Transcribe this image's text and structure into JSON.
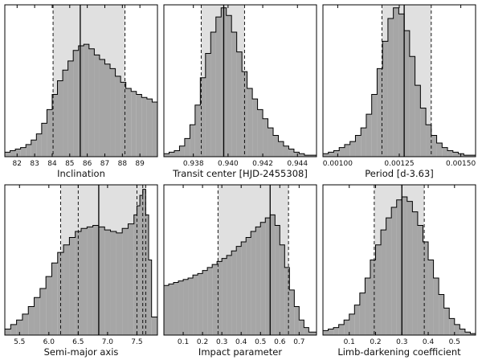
{
  "chart_data": [
    {
      "type": "histogram",
      "xlabel": "Inclination",
      "xlim": [
        81.3,
        90.0
      ],
      "ylim": [
        0,
        1
      ],
      "xticks": [
        82,
        83,
        84,
        85,
        86,
        87,
        88,
        89
      ],
      "tick_labels": [
        "82",
        "83",
        "84",
        "85",
        "86",
        "87",
        "88",
        "89"
      ],
      "bins": [
        81.3,
        81.6,
        81.9,
        82.2,
        82.5,
        82.8,
        83.1,
        83.4,
        83.7,
        84.0,
        84.3,
        84.6,
        84.9,
        85.2,
        85.5,
        85.8,
        86.1,
        86.4,
        86.7,
        87.0,
        87.3,
        87.6,
        87.9,
        88.2,
        88.5,
        88.8,
        89.1,
        89.4,
        89.7,
        90.0
      ],
      "values": [
        0.03,
        0.04,
        0.05,
        0.06,
        0.08,
        0.11,
        0.15,
        0.22,
        0.31,
        0.41,
        0.5,
        0.57,
        0.63,
        0.7,
        0.73,
        0.74,
        0.71,
        0.67,
        0.64,
        0.61,
        0.58,
        0.53,
        0.49,
        0.45,
        0.43,
        0.41,
        0.39,
        0.38,
        0.36
      ],
      "median": 85.6,
      "interval": [
        84.05,
        88.15
      ]
    },
    {
      "type": "histogram",
      "xlabel": "Transit center [HJD-2455308]",
      "xlim": [
        0.9363,
        0.9451
      ],
      "ylim": [
        0,
        1
      ],
      "xticks": [
        0.938,
        0.94,
        0.942,
        0.944
      ],
      "tick_labels": [
        "0.938",
        "0.940",
        "0.942",
        "0.944"
      ],
      "bins": [
        0.9363,
        0.9366,
        0.9369,
        0.9372,
        0.9375,
        0.9378,
        0.9381,
        0.9384,
        0.9387,
        0.939,
        0.9393,
        0.9396,
        0.9399,
        0.9402,
        0.9405,
        0.9408,
        0.9411,
        0.9414,
        0.9417,
        0.942,
        0.9423,
        0.9426,
        0.9429,
        0.9432,
        0.9435,
        0.9438,
        0.9441,
        0.9444,
        0.9447,
        0.9451
      ],
      "values": [
        0.02,
        0.03,
        0.04,
        0.07,
        0.12,
        0.21,
        0.34,
        0.52,
        0.68,
        0.82,
        0.92,
        0.98,
        0.93,
        0.82,
        0.69,
        0.56,
        0.45,
        0.38,
        0.31,
        0.25,
        0.19,
        0.14,
        0.1,
        0.07,
        0.05,
        0.03,
        0.02,
        0.01,
        0.01
      ],
      "median": 0.93975,
      "interval": [
        0.93845,
        0.94095
      ]
    },
    {
      "type": "histogram",
      "xlabel": "Period [d-3.63]",
      "xlim": [
        0.00094,
        0.00156
      ],
      "ylim": [
        0,
        1
      ],
      "xticks": [
        0.001,
        0.00125,
        0.0015
      ],
      "tick_labels": [
        "0.00100",
        "0.00125",
        "0.00150"
      ],
      "bins": [
        0.00094,
        0.000962,
        0.000984,
        0.001006,
        0.001028,
        0.00105,
        0.001072,
        0.001094,
        0.001116,
        0.001138,
        0.00116,
        0.001182,
        0.001204,
        0.001226,
        0.001248,
        0.00127,
        0.001292,
        0.001314,
        0.001336,
        0.001358,
        0.00138,
        0.001402,
        0.001424,
        0.001446,
        0.001468,
        0.00149,
        0.001512,
        0.001534,
        0.00156
      ],
      "values": [
        0.02,
        0.03,
        0.04,
        0.06,
        0.08,
        0.1,
        0.14,
        0.19,
        0.28,
        0.41,
        0.58,
        0.76,
        0.91,
        0.98,
        0.94,
        0.83,
        0.66,
        0.47,
        0.32,
        0.21,
        0.14,
        0.09,
        0.06,
        0.04,
        0.03,
        0.02,
        0.01,
        0.01
      ],
      "median": 0.00127,
      "interval": [
        0.00118,
        0.00138
      ]
    },
    {
      "type": "histogram",
      "xlabel": "Semi-major axis",
      "xlim": [
        5.25,
        7.85
      ],
      "ylim": [
        0,
        1
      ],
      "xticks": [
        5.5,
        6.0,
        6.5,
        7.0,
        7.5
      ],
      "tick_labels": [
        "5.5",
        "6.0",
        "6.5",
        "7.0",
        "7.5"
      ],
      "bins": [
        5.25,
        5.35,
        5.45,
        5.55,
        5.65,
        5.75,
        5.85,
        5.95,
        6.05,
        6.15,
        6.25,
        6.35,
        6.45,
        6.55,
        6.65,
        6.75,
        6.85,
        6.95,
        7.05,
        7.15,
        7.25,
        7.35,
        7.45,
        7.5,
        7.55,
        7.6,
        7.65,
        7.7,
        7.75,
        7.85
      ],
      "values": [
        0.04,
        0.07,
        0.1,
        0.14,
        0.19,
        0.25,
        0.31,
        0.39,
        0.48,
        0.55,
        0.6,
        0.65,
        0.69,
        0.71,
        0.72,
        0.73,
        0.72,
        0.7,
        0.69,
        0.68,
        0.71,
        0.74,
        0.8,
        0.86,
        0.93,
        0.97,
        0.8,
        0.5,
        0.12
      ],
      "median": 6.85,
      "interval": [
        6.2,
        7.65
      ],
      "extra_lines": [
        6.5,
        7.5,
        7.6
      ]
    },
    {
      "type": "histogram",
      "xlabel": "Impact parameter",
      "xlim": [
        0.0,
        0.79
      ],
      "ylim": [
        0,
        1
      ],
      "xticks": [
        0.1,
        0.2,
        0.3,
        0.4,
        0.5,
        0.6,
        0.7
      ],
      "tick_labels": [
        "0.1",
        "0.2",
        "0.3",
        "0.4",
        "0.5",
        "0.6",
        "0.7"
      ],
      "bins": [
        0.0,
        0.025,
        0.05,
        0.075,
        0.1,
        0.125,
        0.15,
        0.175,
        0.2,
        0.225,
        0.25,
        0.275,
        0.3,
        0.325,
        0.35,
        0.375,
        0.4,
        0.425,
        0.45,
        0.475,
        0.5,
        0.525,
        0.55,
        0.575,
        0.6,
        0.625,
        0.65,
        0.675,
        0.7,
        0.725,
        0.75,
        0.79
      ],
      "values": [
        0.33,
        0.34,
        0.35,
        0.36,
        0.37,
        0.38,
        0.4,
        0.41,
        0.43,
        0.45,
        0.47,
        0.49,
        0.51,
        0.53,
        0.56,
        0.59,
        0.62,
        0.65,
        0.69,
        0.72,
        0.75,
        0.78,
        0.8,
        0.73,
        0.6,
        0.45,
        0.3,
        0.19,
        0.1,
        0.05,
        0.02
      ],
      "median": 0.55,
      "interval": [
        0.28,
        0.645
      ]
    },
    {
      "type": "histogram",
      "xlabel": "Limb-darkening coefficient",
      "xlim": [
        0.0,
        0.58
      ],
      "ylim": [
        0,
        1
      ],
      "xticks": [
        0.1,
        0.2,
        0.3,
        0.4,
        0.5
      ],
      "tick_labels": [
        "0.1",
        "0.2",
        "0.3",
        "0.4",
        "0.5"
      ],
      "bins": [
        0.0,
        0.02,
        0.04,
        0.06,
        0.08,
        0.1,
        0.12,
        0.14,
        0.16,
        0.18,
        0.2,
        0.22,
        0.24,
        0.26,
        0.28,
        0.3,
        0.32,
        0.34,
        0.36,
        0.38,
        0.4,
        0.42,
        0.44,
        0.46,
        0.48,
        0.5,
        0.52,
        0.54,
        0.56,
        0.58
      ],
      "values": [
        0.03,
        0.04,
        0.05,
        0.07,
        0.1,
        0.14,
        0.2,
        0.28,
        0.38,
        0.5,
        0.6,
        0.7,
        0.78,
        0.85,
        0.9,
        0.92,
        0.89,
        0.82,
        0.73,
        0.62,
        0.5,
        0.38,
        0.27,
        0.18,
        0.11,
        0.07,
        0.04,
        0.02,
        0.01
      ],
      "median": 0.3,
      "interval": [
        0.195,
        0.385
      ]
    }
  ],
  "colors": {
    "fill": "#a6a6a6",
    "interval_band": "#e0e0e0",
    "edge": "#000000"
  }
}
